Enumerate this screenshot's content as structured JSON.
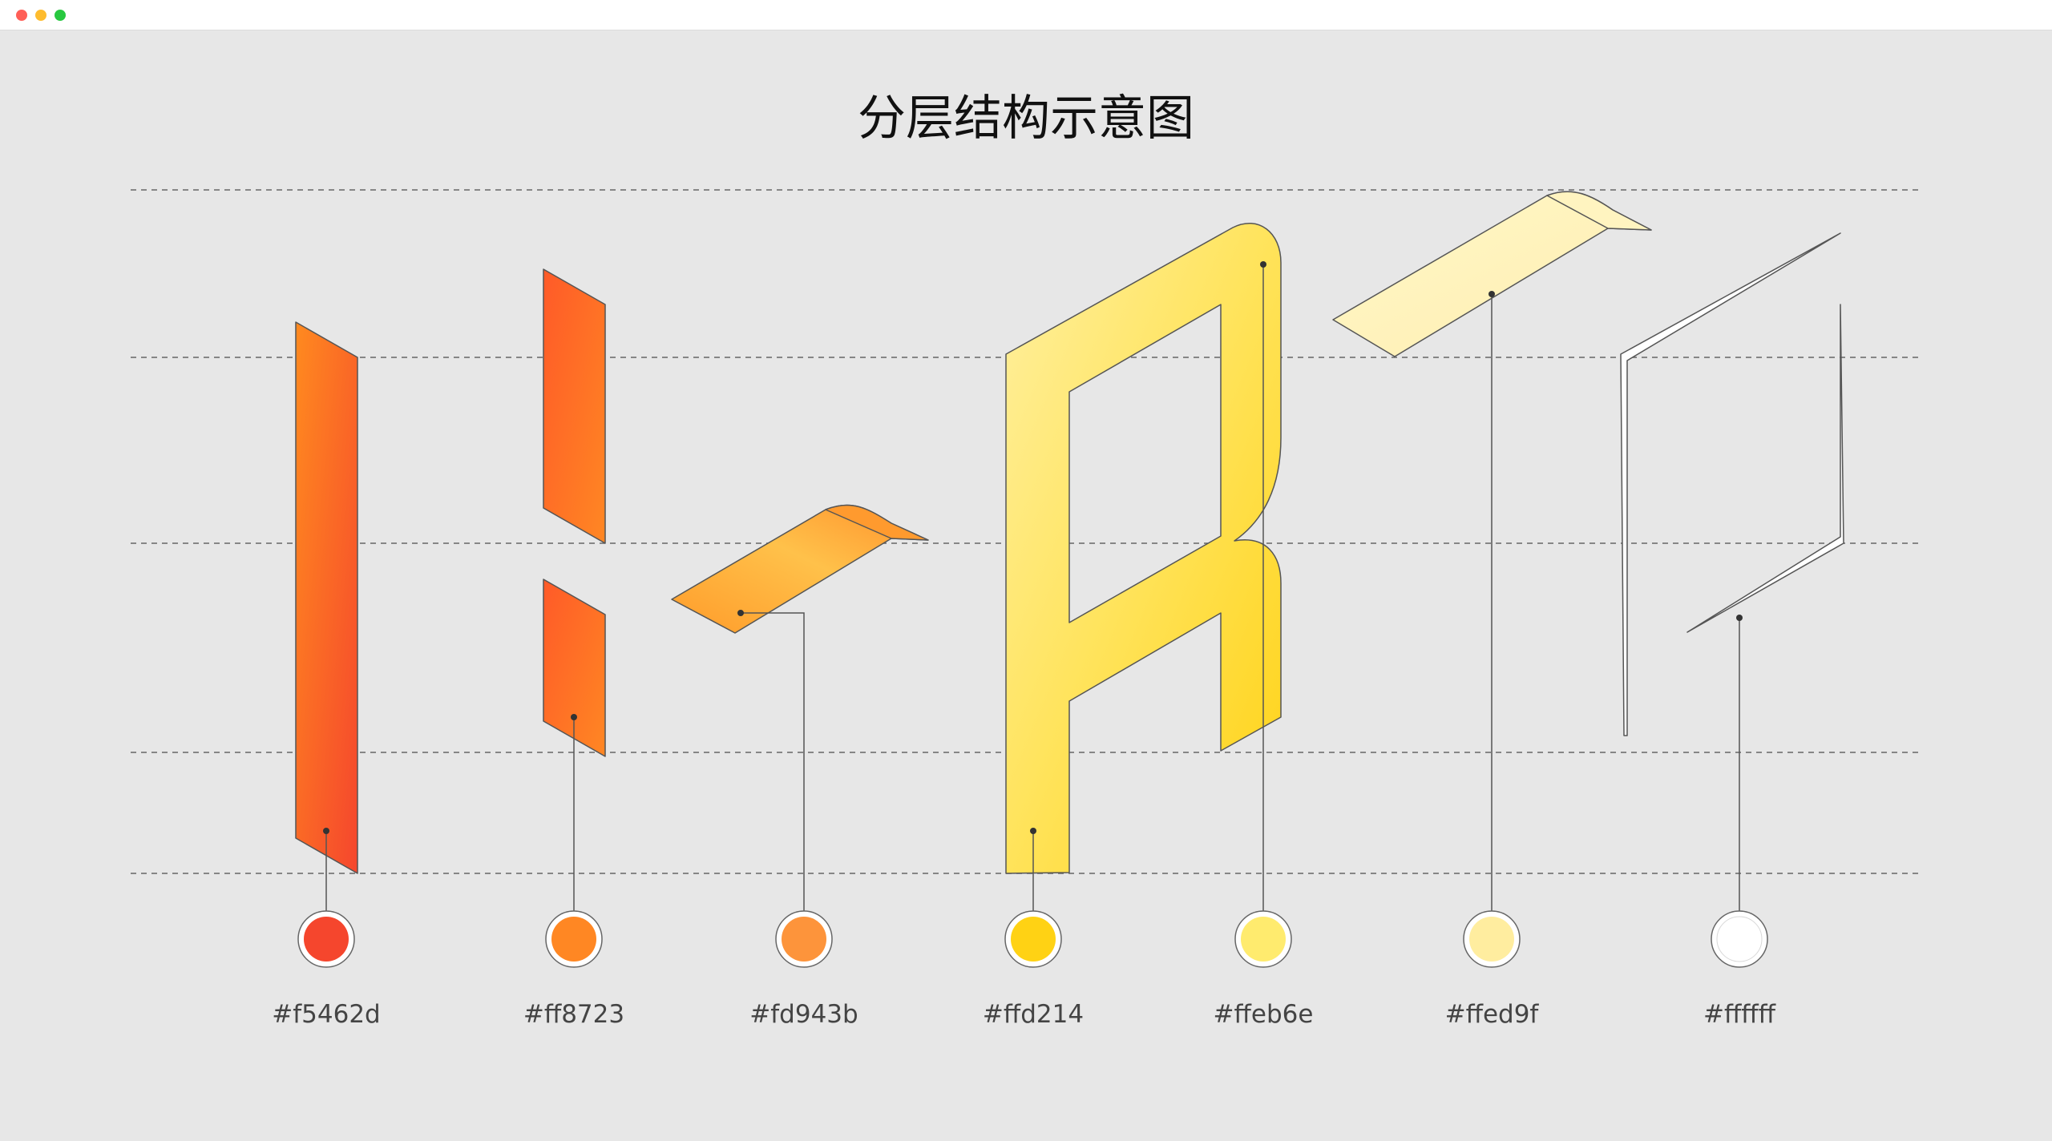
{
  "window": {
    "controls": [
      {
        "name": "close",
        "color": "#ff5f57"
      },
      {
        "name": "minimize",
        "color": "#febc2e"
      },
      {
        "name": "zoom",
        "color": "#28c840"
      }
    ]
  },
  "diagram": {
    "title": "分层结构示意图",
    "swatches": [
      {
        "hex": "#f5462d",
        "color": "#f5462d"
      },
      {
        "hex": "#ff8723",
        "color": "#ff8723"
      },
      {
        "hex": "#fd943b",
        "color": "#fd943b"
      },
      {
        "hex": "#ffd214",
        "color": "#ffd214"
      },
      {
        "hex": "#ffeb6e",
        "color": "#ffeb6e"
      },
      {
        "hex": "#ffed9f",
        "color": "#ffed9f"
      },
      {
        "hex": "#ffffff",
        "color": "#ffffff"
      }
    ]
  }
}
